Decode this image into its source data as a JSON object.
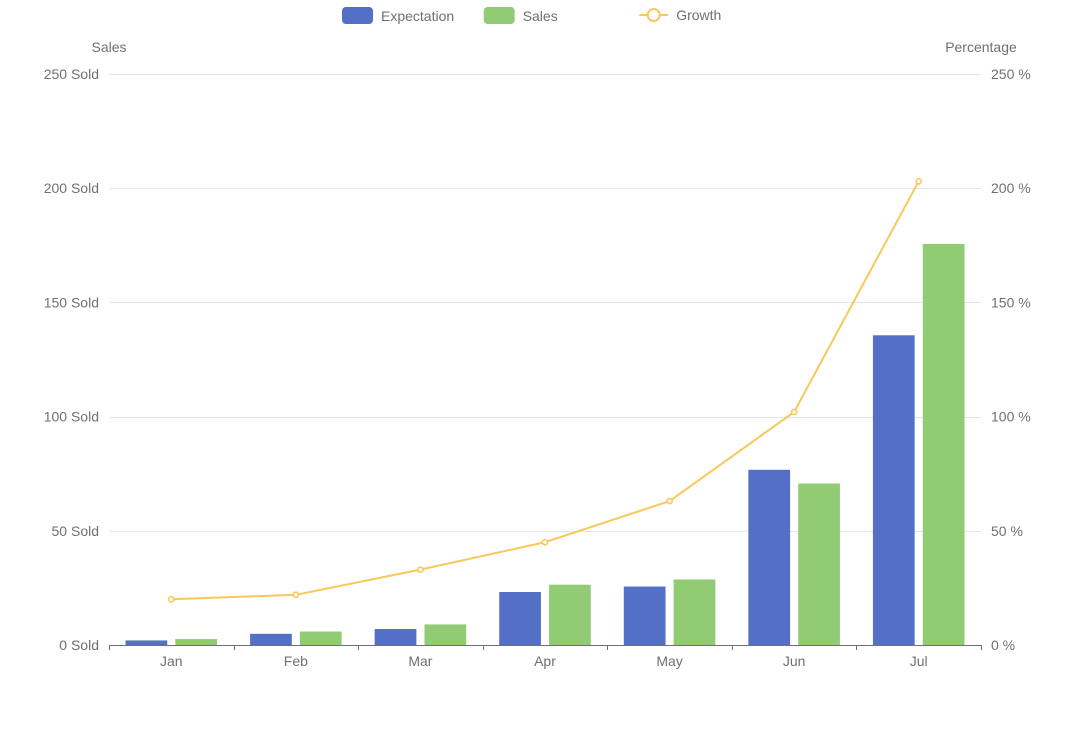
{
  "chart_data": {
    "type": "bar",
    "categories": [
      "Jan",
      "Feb",
      "Mar",
      "Apr",
      "May",
      "Jun",
      "Jul"
    ],
    "series": [
      {
        "name": "Expectation",
        "type": "bar",
        "axis": "left",
        "color": "#5470c6",
        "values": [
          2,
          4.9,
          7,
          23.2,
          25.6,
          76.7,
          135.6
        ]
      },
      {
        "name": "Sales",
        "type": "bar",
        "axis": "left",
        "color": "#91cc75",
        "values": [
          2.6,
          5.9,
          9,
          26.4,
          28.7,
          70.7,
          175.6
        ]
      },
      {
        "name": "Growth",
        "type": "line",
        "axis": "right",
        "color": "#fac858",
        "values": [
          20,
          22,
          33,
          45,
          63,
          102,
          203
        ]
      }
    ],
    "y_left": {
      "label": "Sales",
      "ylim": [
        0,
        250
      ],
      "ticks": [
        0,
        50,
        100,
        150,
        200,
        250
      ],
      "tick_suffix": " Sold"
    },
    "y_right": {
      "label": "Percentage",
      "ylim": [
        0,
        250
      ],
      "ticks": [
        0,
        50,
        100,
        150,
        200,
        250
      ],
      "tick_suffix": " %"
    },
    "legend_placement": "top-center",
    "grid": true,
    "gridline_color": "#e0e6f1",
    "axis_color": "#6e7079"
  }
}
